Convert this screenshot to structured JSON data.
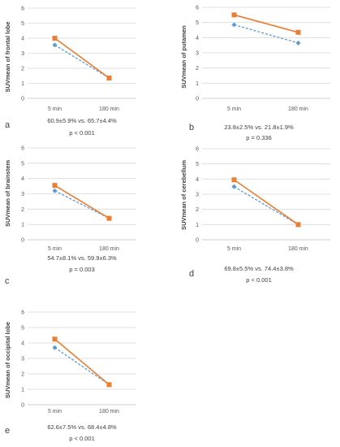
{
  "colors": {
    "series_a": "#ED7D31",
    "series_b": "#5B9BD5",
    "grid": "#d9d9d9",
    "axis": "#bfbfbf"
  },
  "chart_data": [
    {
      "type": "line",
      "panel_label": "a",
      "categories": [
        "5 min",
        "180 min"
      ],
      "ylabel": "SUVmean of frontal lobe",
      "ylim": [
        0,
        6
      ],
      "yticks": [
        0,
        1,
        2,
        3,
        4,
        5,
        6
      ],
      "grid": true,
      "series": [
        {
          "style": "solid-square",
          "values": [
            4.0,
            1.35
          ]
        },
        {
          "style": "dashed-diamond",
          "values": [
            3.55,
            1.35
          ]
        }
      ],
      "stats": "60.9±5.9% vs. 65.7±4.4%",
      "p_value": "p < 0.001"
    },
    {
      "type": "line",
      "panel_label": "b",
      "categories": [
        "5 min",
        "180 min"
      ],
      "ylabel": "SUVmean of putamen",
      "ylim": [
        0,
        6
      ],
      "yticks": [
        0,
        1,
        2,
        3,
        4,
        5,
        6
      ],
      "grid": true,
      "series": [
        {
          "style": "solid-square",
          "values": [
            5.5,
            4.35
          ]
        },
        {
          "style": "dashed-diamond",
          "values": [
            4.85,
            3.65
          ]
        }
      ],
      "stats": "23.8±2.5% vs. 21.8±1.9%",
      "p_value": "p = 0.336"
    },
    {
      "type": "line",
      "panel_label": "c",
      "categories": [
        "5 min",
        "180 min"
      ],
      "ylabel": "SUVmean of brainstem",
      "ylim": [
        0,
        6
      ],
      "yticks": [
        0,
        1,
        2,
        3,
        4,
        5,
        6
      ],
      "grid": true,
      "series": [
        {
          "style": "solid-square",
          "values": [
            3.55,
            1.4
          ]
        },
        {
          "style": "dashed-diamond",
          "values": [
            3.2,
            1.4
          ]
        }
      ],
      "stats": "54.7±8.1% vs. 59.9±6.3%",
      "p_value": "p = 0.003"
    },
    {
      "type": "line",
      "panel_label": "d",
      "categories": [
        "5 min",
        "180 min"
      ],
      "ylabel": "SUVmean of cerebellum",
      "ylim": [
        0,
        6
      ],
      "yticks": [
        0,
        1,
        2,
        3,
        4,
        5,
        6
      ],
      "grid": true,
      "series": [
        {
          "style": "solid-square",
          "values": [
            3.95,
            1.0
          ]
        },
        {
          "style": "dashed-diamond",
          "values": [
            3.5,
            1.0
          ]
        }
      ],
      "stats": "69.8±5.5% vs. 74.4±3.8%",
      "p_value": "p < 0.001"
    },
    {
      "type": "line",
      "panel_label": "e",
      "categories": [
        "5 min",
        "180 min"
      ],
      "ylabel": "SUVmean of occipital lobe",
      "ylim": [
        0,
        6
      ],
      "yticks": [
        0,
        1,
        2,
        3,
        4,
        5,
        6
      ],
      "grid": true,
      "series": [
        {
          "style": "solid-square",
          "values": [
            4.25,
            1.3
          ]
        },
        {
          "style": "dashed-diamond",
          "values": [
            3.7,
            1.3
          ]
        }
      ],
      "stats": "62.6±7.5% vs. 68.4±4.8%",
      "p_value": "p < 0.001"
    }
  ]
}
